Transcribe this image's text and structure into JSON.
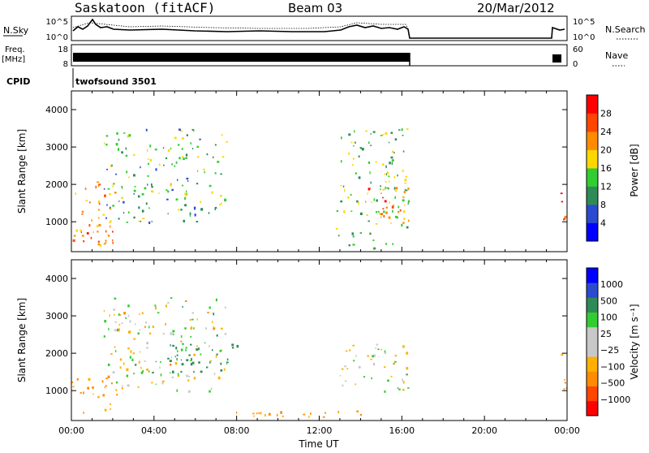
{
  "header": {
    "station": "Saskatoon (fitACF)",
    "beam": "Beam 03",
    "date": "20/Mar/2012"
  },
  "noise_panel": {
    "left_label": "N.Sky",
    "left_ticks": [
      "10^5",
      "10^0"
    ],
    "right_ticks": [
      "10^5",
      "10^0"
    ],
    "right_label": "N.Search"
  },
  "freq_panel": {
    "left_label_line1": "Freq.",
    "left_label_line2": "[MHz]",
    "left_ticks": [
      "18",
      "8"
    ],
    "right_ticks": [
      "60",
      "0"
    ],
    "right_label": "Nave"
  },
  "cpid": {
    "label": "CPID",
    "value": "twofsound 3501"
  },
  "colors": {
    "power_scale": [
      "#0000ff",
      "#2a4bd0",
      "#2e8b57",
      "#32cd32",
      "#ffd700",
      "#ff8c00",
      "#ff4500",
      "#ff0000"
    ],
    "velocity_scale": [
      "#ff0000",
      "#ff4500",
      "#ff8c00",
      "#ffb000",
      "#c8c8c8",
      "#c8c8c8",
      "#32cd32",
      "#2e8b57",
      "#2a4bd0",
      "#0000ff"
    ],
    "ground_scatter": "#c0c0c0"
  },
  "chart_data": [
    {
      "type": "heatmap",
      "panel": "power",
      "ylabel": "Slant Range [km]",
      "yticks": [
        "1000",
        "2000",
        "3000",
        "4000"
      ],
      "ylim": [
        200,
        4500
      ],
      "xlim": [
        0,
        24
      ],
      "colorbar_label": "Power [dB]",
      "colorbar_ticks": [
        "4",
        "8",
        "12",
        "16",
        "20",
        "24",
        "28"
      ],
      "colorbar_range": [
        0,
        32
      ],
      "scatter_regions": [
        {
          "t0": 0.0,
          "t1": 2.2,
          "r0": 400,
          "r1": 2200,
          "value": 22
        },
        {
          "t0": 0.3,
          "t1": 2.0,
          "r0": 400,
          "r1": 900,
          "value": 28
        },
        {
          "t0": 1.5,
          "t1": 7.5,
          "r0": 1000,
          "r1": 3500,
          "value": 12
        },
        {
          "t0": 12.8,
          "t1": 16.3,
          "r0": 300,
          "r1": 3500,
          "value": 14
        },
        {
          "t0": 14.0,
          "t1": 16.3,
          "r0": 900,
          "r1": 2100,
          "value": 24
        },
        {
          "t0": 23.6,
          "t1": 24.0,
          "r0": 800,
          "r1": 2000,
          "value": 26
        }
      ]
    },
    {
      "type": "heatmap",
      "panel": "velocity",
      "ylabel": "Slant Range [km]",
      "yticks": [
        "1000",
        "2000",
        "3000",
        "4000"
      ],
      "ylim": [
        200,
        4500
      ],
      "xlim": [
        0,
        24
      ],
      "xlabel": "Time UT",
      "xticks": [
        "00:00",
        "04:00",
        "08:00",
        "12:00",
        "16:00",
        "20:00",
        "00:00"
      ],
      "colorbar_label": "Velocity [m s⁻¹]",
      "colorbar_ticks": [
        "1000",
        "500",
        "100",
        "25",
        "−25",
        "−100",
        "−500",
        "−1000"
      ],
      "scatter_regions": [
        {
          "t0": 0.0,
          "t1": 2.2,
          "r0": 400,
          "r1": 1400,
          "value": -150
        },
        {
          "t0": 1.5,
          "t1": 7.5,
          "r0": 1000,
          "r1": 3500,
          "value": 0
        },
        {
          "t0": 4.5,
          "t1": 8.0,
          "r0": 1500,
          "r1": 2400,
          "value": 300
        },
        {
          "t0": 7.0,
          "t1": 16.3,
          "r0": 300,
          "r1": 500,
          "value": -150
        },
        {
          "t0": 13.0,
          "t1": 16.3,
          "r0": 1000,
          "r1": 2300,
          "value": 0
        },
        {
          "t0": 23.6,
          "t1": 24.0,
          "r0": 800,
          "r1": 2000,
          "value": -150
        }
      ]
    }
  ]
}
